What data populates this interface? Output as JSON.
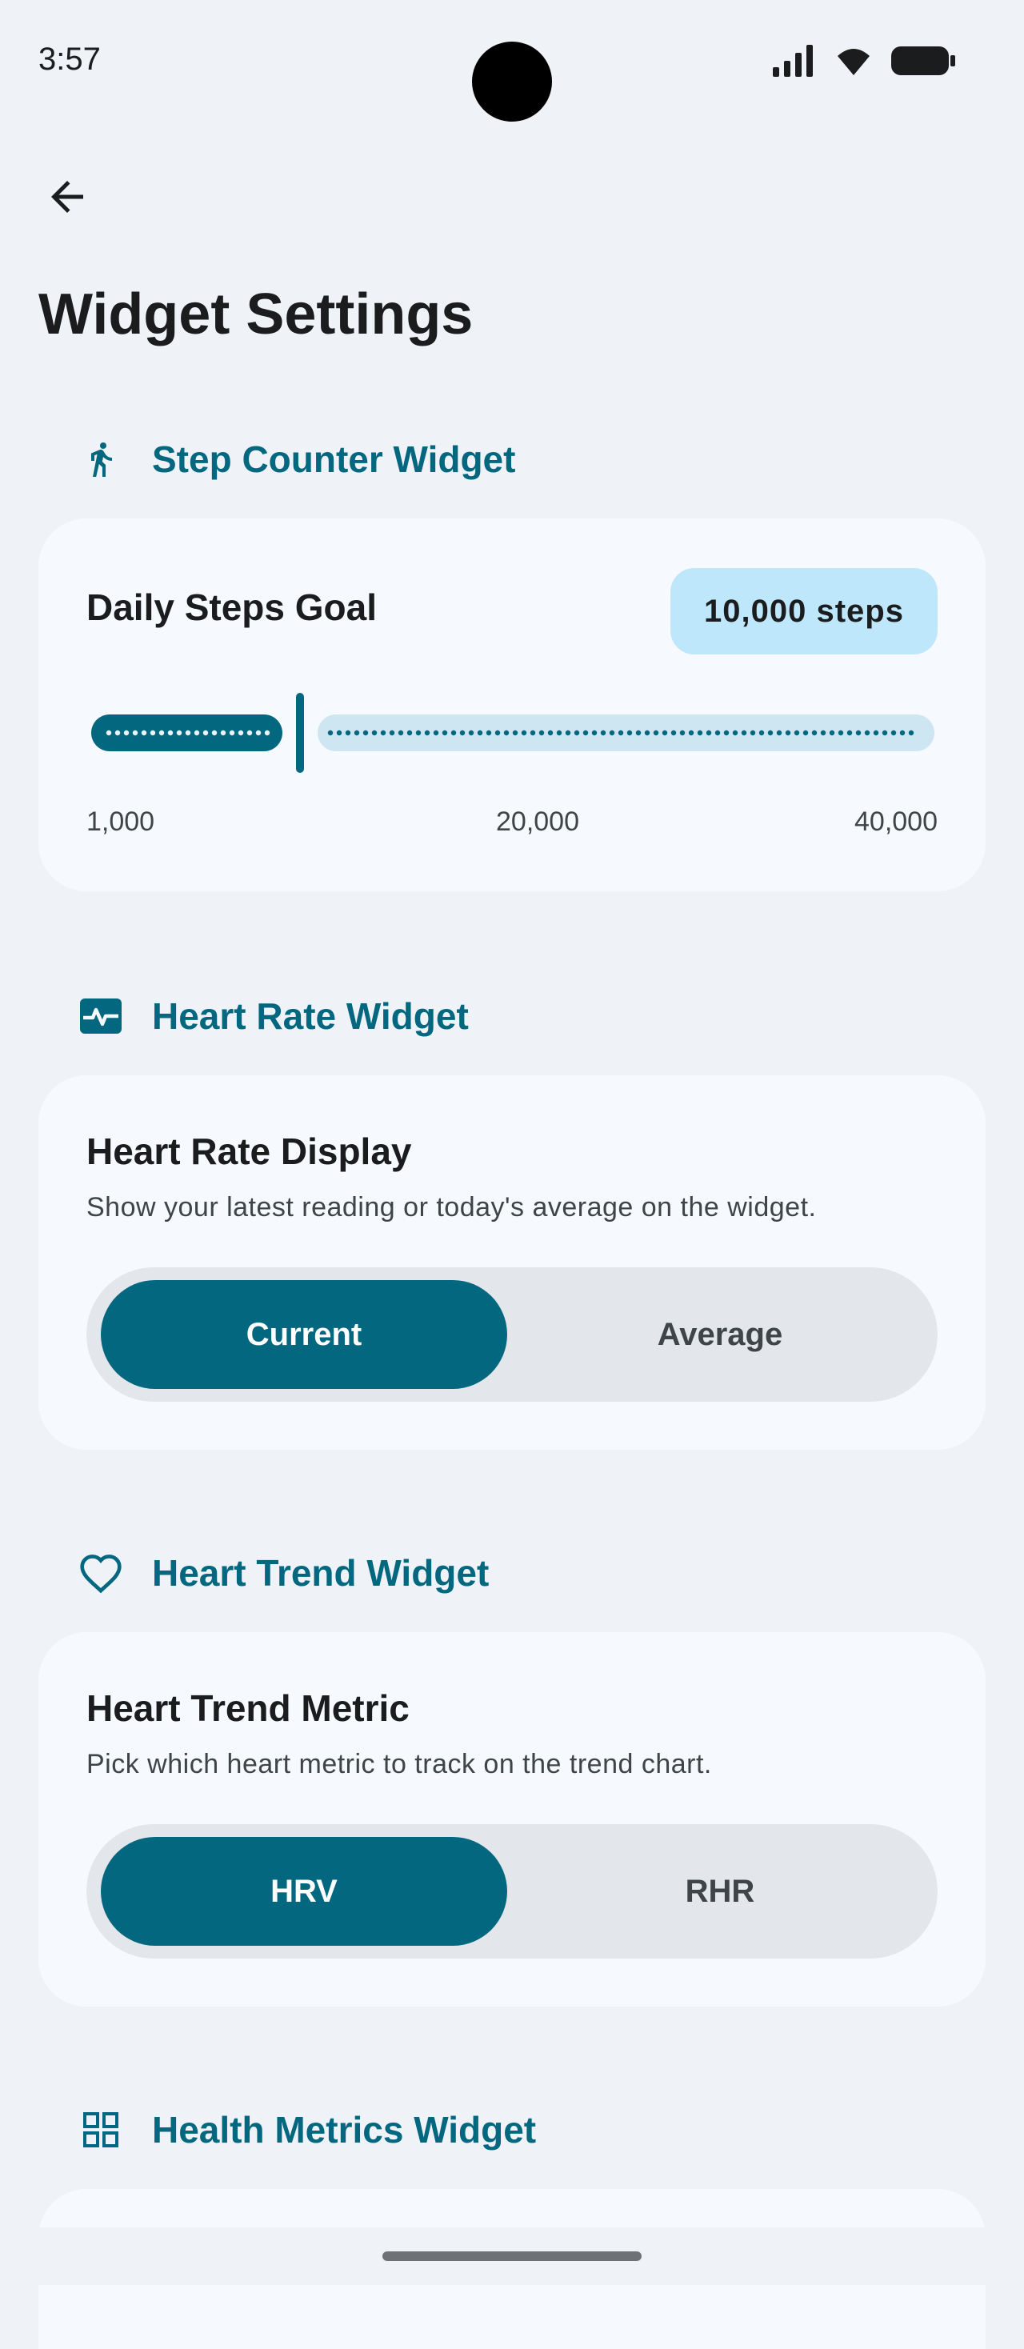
{
  "status": {
    "time": "3:57"
  },
  "page": {
    "title": "Widget Settings"
  },
  "sections": {
    "steps": {
      "header": "Step Counter Widget",
      "icon": "walk-icon"
    },
    "heart_rate": {
      "header": "Heart Rate Widget",
      "icon": "monitor-heart-icon"
    },
    "heart_trend": {
      "header": "Heart Trend Widget",
      "icon": "heart-outline-icon"
    },
    "health_metrics": {
      "header": "Health Metrics Widget",
      "icon": "grid-icon"
    }
  },
  "steps_card": {
    "title": "Daily Steps Goal",
    "badge": "10,000 steps",
    "slider": {
      "min": 1000,
      "max": 40000,
      "value": 10000
    },
    "ticks": [
      "1,000",
      "20,000",
      "40,000"
    ]
  },
  "heart_rate_card": {
    "title": "Heart Rate Display",
    "description": "Show your latest reading or today's average on the widget.",
    "options": [
      "Current",
      "Average"
    ],
    "selected": "Current"
  },
  "heart_trend_card": {
    "title": "Heart Trend Metric",
    "description": "Pick which heart metric to track on the trend chart.",
    "options": [
      "HRV",
      "RHR"
    ],
    "selected": "HRV"
  },
  "colors": {
    "accent": "#03677f",
    "badge": "#bfe7fb",
    "background": "#eff3f8",
    "card": "#f6f9fe"
  }
}
